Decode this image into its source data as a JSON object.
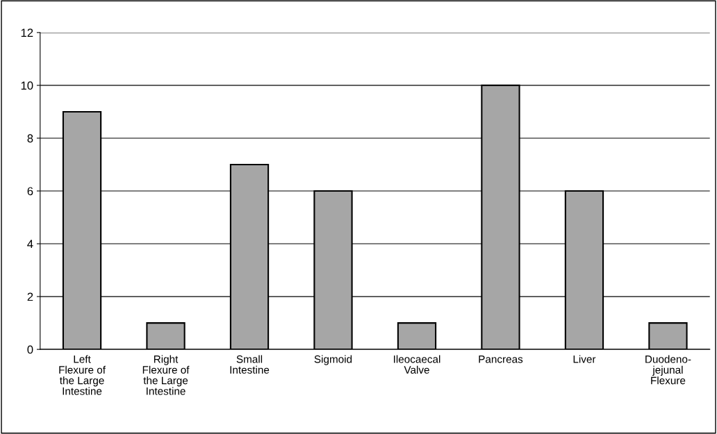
{
  "chart_data": {
    "type": "bar",
    "categories": [
      "Left Flexure of the Large Intestine",
      "Right Flexure of the Large Intestine",
      "Small Intestine",
      "Sigmoid",
      "Ileocaecal Valve",
      "Pancreas",
      "Liver",
      "Duodeno-jejunal Flexure"
    ],
    "values": [
      9,
      1,
      7,
      6,
      1,
      10,
      6,
      1
    ],
    "color": "#a6a6a6",
    "ylim": [
      0,
      12
    ],
    "yticks": [
      0,
      2,
      4,
      6,
      8,
      10,
      12
    ],
    "grid": "y",
    "legend": false
  }
}
